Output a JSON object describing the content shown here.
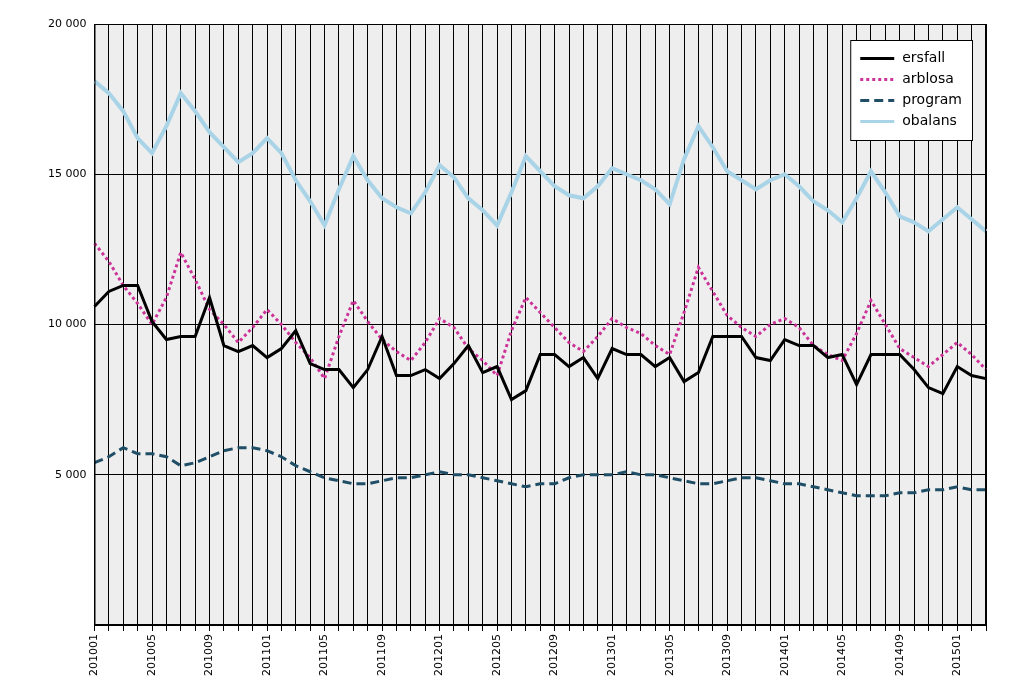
{
  "chart_data": {
    "type": "line",
    "categories": [
      "201001",
      null,
      null,
      null,
      "201005",
      null,
      null,
      null,
      "201009",
      null,
      null,
      null,
      "201101",
      null,
      null,
      null,
      "201105",
      null,
      null,
      null,
      "201109",
      null,
      null,
      null,
      "201201",
      null,
      null,
      null,
      "201205",
      null,
      null,
      null,
      "201209",
      null,
      null,
      null,
      "201301",
      null,
      null,
      null,
      "201305",
      null,
      null,
      null,
      "201309",
      null,
      null,
      null,
      "201401",
      null,
      null,
      null,
      "201405",
      null,
      null,
      null,
      "201409",
      null,
      null,
      null,
      "201501",
      null,
      null
    ],
    "series": [
      {
        "name": "ersfall",
        "color": "#000000",
        "line_style": "solid",
        "values": [
          10600,
          11100,
          11300,
          11300,
          10100,
          9500,
          9600,
          9600,
          10900,
          9300,
          9100,
          9300,
          8900,
          9200,
          9800,
          8700,
          8500,
          8500,
          7900,
          8500,
          9600,
          8300,
          8300,
          8500,
          8200,
          8700,
          9300,
          8400,
          8600,
          7500,
          7800,
          9000,
          9000,
          8600,
          8900,
          8200,
          9200,
          9000,
          9000,
          8600,
          8900,
          8100,
          8400,
          9600,
          9600,
          9600,
          8900,
          8800,
          9500,
          9300,
          9300,
          8900,
          9000,
          8000,
          9000,
          9000,
          9000,
          8500,
          7900,
          7700,
          8600,
          8300,
          8200
        ]
      },
      {
        "name": "arblosa",
        "color": "#cc3399",
        "line_style": "dotted",
        "values": [
          12700,
          12100,
          11300,
          10700,
          10000,
          10900,
          12400,
          11500,
          10500,
          10000,
          9400,
          9900,
          10500,
          10000,
          9400,
          8900,
          8200,
          9600,
          10800,
          10100,
          9500,
          9100,
          8800,
          9400,
          10200,
          9900,
          9200,
          8800,
          8300,
          9800,
          10900,
          10400,
          9900,
          9400,
          9100,
          9600,
          10200,
          9900,
          9700,
          9300,
          9000,
          10400,
          11900,
          11100,
          10300,
          9900,
          9600,
          10000,
          10200,
          9900,
          9300,
          9000,
          8800,
          9700,
          10800,
          10000,
          9200,
          8900,
          8600,
          9000,
          9400,
          9000,
          8500
        ]
      },
      {
        "name": "program",
        "color": "#1f4e66",
        "line_style": "dashed",
        "values": [
          5400,
          5600,
          5900,
          5700,
          5700,
          5600,
          5300,
          5400,
          5600,
          5800,
          5900,
          5900,
          5800,
          5600,
          5300,
          5100,
          4900,
          4800,
          4700,
          4700,
          4800,
          4900,
          4900,
          5000,
          5100,
          5000,
          5000,
          4900,
          4800,
          4700,
          4600,
          4700,
          4700,
          4900,
          5000,
          5000,
          5000,
          5100,
          5000,
          5000,
          4900,
          4800,
          4700,
          4700,
          4800,
          4900,
          4900,
          4800,
          4700,
          4700,
          4600,
          4500,
          4400,
          4300,
          4300,
          4300,
          4400,
          4400,
          4500,
          4500,
          4600,
          4500,
          4500
        ]
      },
      {
        "name": "obalans",
        "color": "#a9d3e6",
        "line_style": "solid",
        "values": [
          18100,
          17700,
          17100,
          16200,
          15700,
          16600,
          17700,
          17100,
          16400,
          15900,
          15400,
          15700,
          16200,
          15700,
          14800,
          14100,
          13300,
          14500,
          15600,
          14800,
          14200,
          13900,
          13700,
          14400,
          15300,
          14900,
          14200,
          13800,
          13300,
          14400,
          15600,
          15100,
          14600,
          14300,
          14200,
          14600,
          15200,
          15000,
          14800,
          14500,
          14000,
          15500,
          16600,
          15900,
          15100,
          14800,
          14500,
          14800,
          15000,
          14600,
          14100,
          13800,
          13400,
          14200,
          15100,
          14400,
          13600,
          13400,
          13100,
          13500,
          13900,
          13500,
          13100
        ]
      }
    ],
    "ylim": [
      0,
      20000
    ],
    "yticks": [
      {
        "value": 5000,
        "label": "5 000"
      },
      {
        "value": 10000,
        "label": "10 000"
      },
      {
        "value": 15000,
        "label": "15 000"
      },
      {
        "value": 20000,
        "label": "20 000"
      }
    ],
    "grid": true,
    "legend": "top-right"
  }
}
